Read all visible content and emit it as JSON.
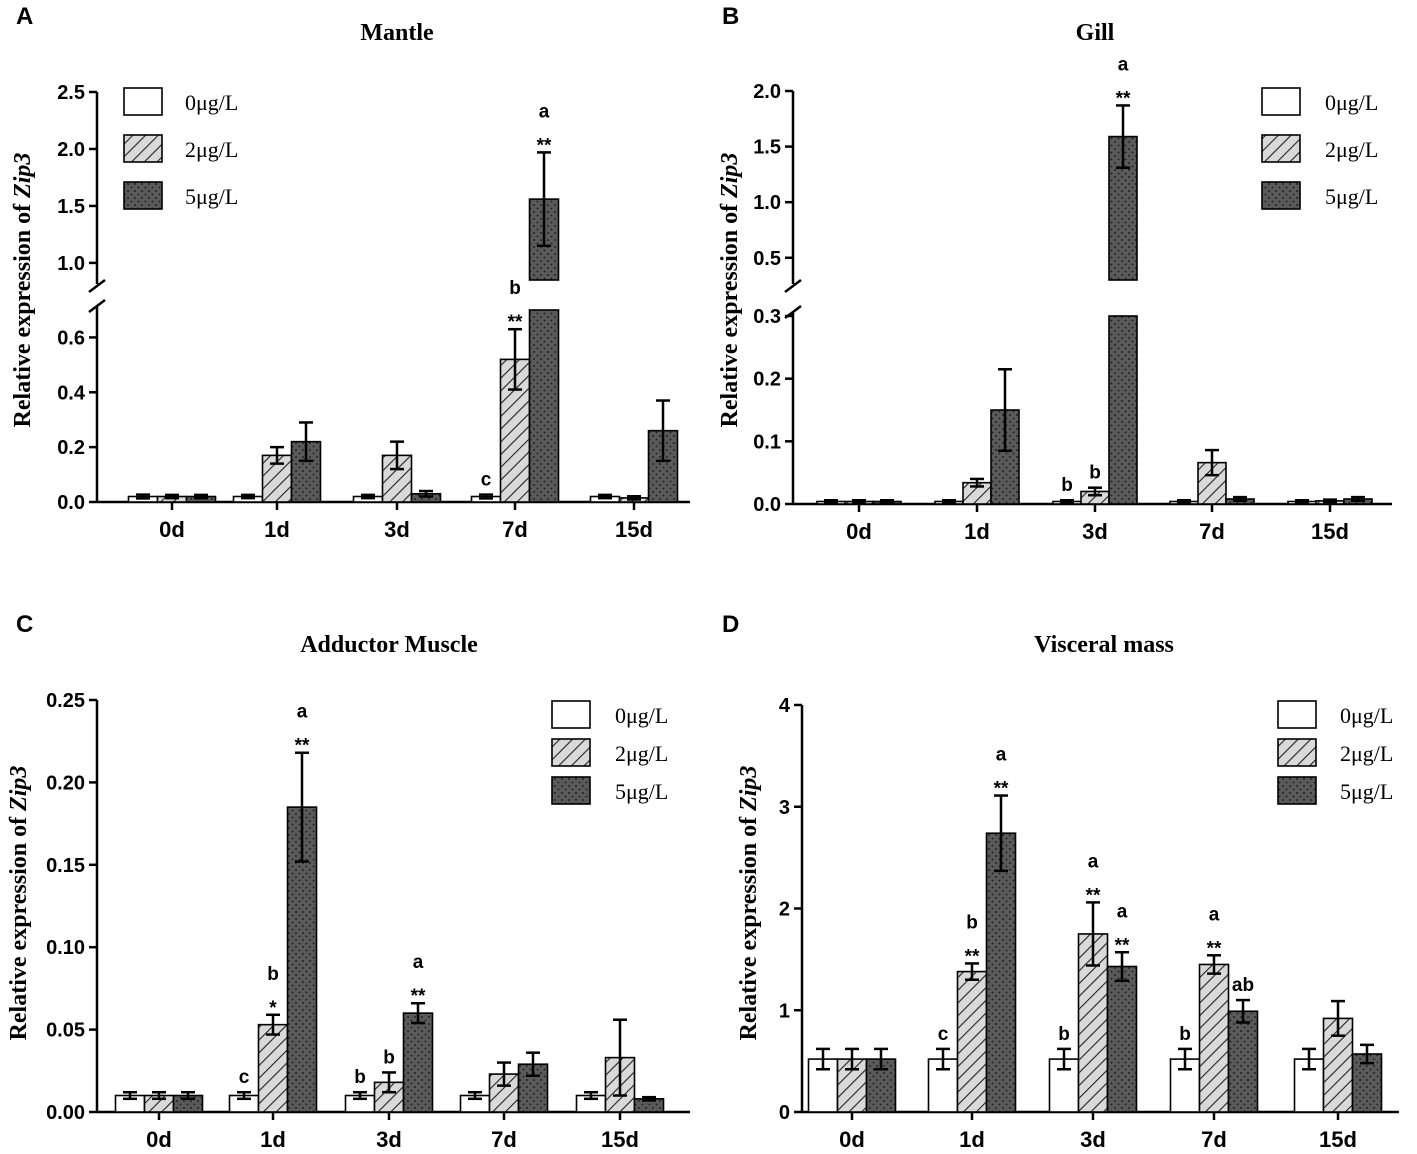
{
  "figure": {
    "categories": [
      "0d",
      "1d",
      "3d",
      "7d",
      "15d"
    ],
    "legend": [
      "0μg/L",
      "2μg/L",
      "5μg/L"
    ],
    "ylabel_prefix": "Relative expression of",
    "ylabel_gene": "Zip3",
    "colors": {
      "series0": "#ffffff",
      "series1": "#cccccc",
      "series2": "#555555",
      "stroke": "#000000"
    }
  },
  "chart_data": [
    {
      "panel": "A",
      "title": "Mantle",
      "type": "bar",
      "categories": [
        "0d",
        "1d",
        "3d",
        "7d",
        "15d"
      ],
      "series": [
        {
          "name": "0μg/L",
          "values": [
            0.02,
            0.02,
            0.02,
            0.02,
            0.02
          ],
          "errors": [
            0.007,
            0.006,
            0.006,
            0.007,
            0.006
          ]
        },
        {
          "name": "2μg/L",
          "values": [
            0.02,
            0.17,
            0.17,
            0.52,
            0.015
          ],
          "errors": [
            0.006,
            0.03,
            0.05,
            0.11,
            0.006
          ]
        },
        {
          "name": "5μg/L",
          "values": [
            0.02,
            0.22,
            0.03,
            1.56,
            0.26
          ],
          "errors": [
            0.006,
            0.07,
            0.01,
            0.41,
            0.11
          ]
        }
      ],
      "y_ticks_lower": [
        "0.0",
        "0.2",
        "0.4",
        "0.6"
      ],
      "y_ticks_upper": [
        "1.0",
        "1.5",
        "2.0",
        "2.5"
      ],
      "ylim_lower": [
        0,
        0.7
      ],
      "ylim_upper": [
        0.85,
        2.5
      ],
      "annotations": [
        {
          "cat": 3,
          "series": 0,
          "lines": [
            "c"
          ]
        },
        {
          "cat": 3,
          "series": 1,
          "lines": [
            "b",
            "**"
          ]
        },
        {
          "cat": 3,
          "series": 2,
          "lines": [
            "a",
            "**"
          ]
        }
      ]
    },
    {
      "panel": "B",
      "title": "Gill",
      "type": "bar",
      "categories": [
        "0d",
        "1d",
        "3d",
        "7d",
        "15d"
      ],
      "series": [
        {
          "name": "0μg/L",
          "values": [
            0.004,
            0.004,
            0.004,
            0.004,
            0.004
          ],
          "errors": [
            0.002,
            0.002,
            0.002,
            0.002,
            0.002
          ]
        },
        {
          "name": "2μg/L",
          "values": [
            0.004,
            0.034,
            0.02,
            0.066,
            0.005
          ],
          "errors": [
            0.002,
            0.006,
            0.006,
            0.02,
            0.002
          ]
        },
        {
          "name": "5μg/L",
          "values": [
            0.004,
            0.15,
            1.59,
            0.008,
            0.008
          ],
          "errors": [
            0.002,
            0.065,
            0.28,
            0.003,
            0.003
          ]
        }
      ],
      "y_ticks_lower": [
        "0.0",
        "0.1",
        "0.2",
        "0.3"
      ],
      "y_ticks_upper": [
        "0.5",
        "1.0",
        "1.5",
        "2.0"
      ],
      "ylim_lower": [
        0,
        0.3
      ],
      "ylim_upper": [
        0.3,
        2.0
      ],
      "annotations": [
        {
          "cat": 2,
          "series": 0,
          "lines": [
            "b"
          ]
        },
        {
          "cat": 2,
          "series": 1,
          "lines": [
            "b"
          ]
        },
        {
          "cat": 2,
          "series": 2,
          "lines": [
            "a",
            "**"
          ]
        }
      ]
    },
    {
      "panel": "C",
      "title": "Adductor Muscle",
      "type": "bar",
      "categories": [
        "0d",
        "1d",
        "3d",
        "7d",
        "15d"
      ],
      "series": [
        {
          "name": "0μg/L",
          "values": [
            0.01,
            0.01,
            0.01,
            0.01,
            0.01
          ],
          "errors": [
            0.002,
            0.002,
            0.002,
            0.002,
            0.002
          ]
        },
        {
          "name": "2μg/L",
          "values": [
            0.01,
            0.053,
            0.018,
            0.023,
            0.033
          ],
          "errors": [
            0.002,
            0.006,
            0.006,
            0.007,
            0.023
          ]
        },
        {
          "name": "5μg/L",
          "values": [
            0.01,
            0.185,
            0.06,
            0.029,
            0.008
          ],
          "errors": [
            0.002,
            0.033,
            0.006,
            0.007,
            0.001
          ]
        }
      ],
      "y_ticks": [
        "0.00",
        "0.05",
        "0.10",
        "0.15",
        "0.20",
        "0.25"
      ],
      "ylim": [
        0,
        0.25
      ],
      "annotations": [
        {
          "cat": 1,
          "series": 0,
          "lines": [
            "c"
          ]
        },
        {
          "cat": 1,
          "series": 1,
          "lines": [
            "b",
            "*"
          ]
        },
        {
          "cat": 1,
          "series": 2,
          "lines": [
            "a",
            "**"
          ]
        },
        {
          "cat": 2,
          "series": 0,
          "lines": [
            "b"
          ]
        },
        {
          "cat": 2,
          "series": 1,
          "lines": [
            "b"
          ]
        },
        {
          "cat": 2,
          "series": 2,
          "lines": [
            "a",
            "**"
          ]
        }
      ]
    },
    {
      "panel": "D",
      "title": "Visceral  mass",
      "type": "bar",
      "categories": [
        "0d",
        "1d",
        "3d",
        "7d",
        "15d"
      ],
      "series": [
        {
          "name": "0μg/L",
          "values": [
            0.52,
            0.52,
            0.52,
            0.52,
            0.52
          ],
          "errors": [
            0.1,
            0.1,
            0.1,
            0.1,
            0.1
          ]
        },
        {
          "name": "2μg/L",
          "values": [
            0.52,
            1.38,
            1.75,
            1.45,
            0.92
          ],
          "errors": [
            0.1,
            0.08,
            0.31,
            0.09,
            0.17
          ]
        },
        {
          "name": "5μg/L",
          "values": [
            0.52,
            2.74,
            1.43,
            0.99,
            0.57
          ],
          "errors": [
            0.1,
            0.37,
            0.14,
            0.11,
            0.09
          ]
        }
      ],
      "y_ticks": [
        "0",
        "1",
        "2",
        "3",
        "4"
      ],
      "ylim": [
        0,
        4
      ],
      "annotations": [
        {
          "cat": 1,
          "series": 0,
          "lines": [
            "c"
          ]
        },
        {
          "cat": 1,
          "series": 1,
          "lines": [
            "b",
            "**"
          ]
        },
        {
          "cat": 1,
          "series": 2,
          "lines": [
            "a",
            "**"
          ]
        },
        {
          "cat": 2,
          "series": 0,
          "lines": [
            "b"
          ]
        },
        {
          "cat": 2,
          "series": 1,
          "lines": [
            "a",
            "**"
          ]
        },
        {
          "cat": 2,
          "series": 2,
          "lines": [
            "a",
            "**"
          ]
        },
        {
          "cat": 3,
          "series": 0,
          "lines": [
            "b"
          ]
        },
        {
          "cat": 3,
          "series": 1,
          "lines": [
            "a",
            "**"
          ]
        },
        {
          "cat": 3,
          "series": 2,
          "lines": [
            "ab"
          ]
        }
      ]
    }
  ]
}
